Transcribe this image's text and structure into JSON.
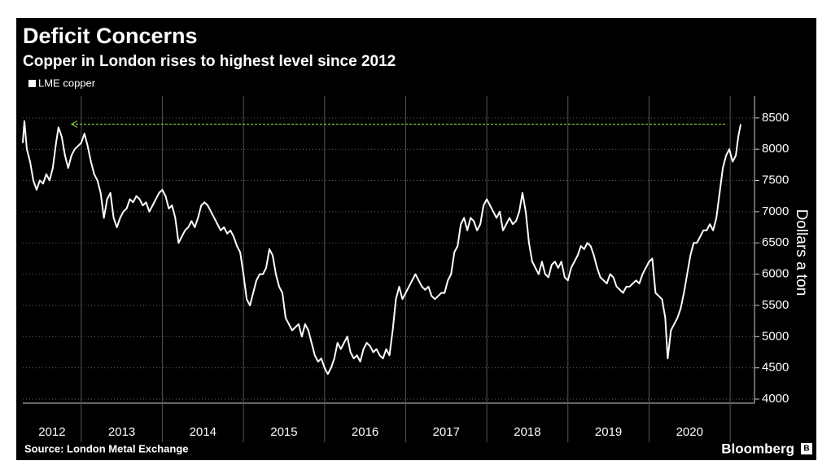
{
  "chart_data": {
    "type": "line",
    "title": "Deficit Concerns",
    "subtitle": "Copper in London rises to highest level since 2012",
    "y_label": "Dollars a ton",
    "source": "Source: London Metal Exchange",
    "brand": "Bloomberg",
    "xlim": [
      2012.28,
      2021.3
    ],
    "xticks": [
      2012,
      2013,
      2014,
      2015,
      2016,
      2017,
      2018,
      2019,
      2020
    ],
    "ylim": [
      3935,
      8850
    ],
    "yticks": [
      4000,
      4500,
      5000,
      5500,
      6000,
      6500,
      7000,
      7500,
      8000,
      8500
    ],
    "grid": true,
    "reference_line": {
      "value": 8400,
      "color": "#7ac143"
    },
    "x": [
      2012.28,
      2012.3,
      2012.33,
      2012.37,
      2012.41,
      2012.45,
      2012.49,
      2012.53,
      2012.57,
      2012.61,
      2012.65,
      2012.69,
      2012.72,
      2012.76,
      2012.8,
      2012.84,
      2012.88,
      2012.92,
      2012.96,
      2013.0,
      2013.04,
      2013.08,
      2013.12,
      2013.16,
      2013.2,
      2013.24,
      2013.28,
      2013.32,
      2013.36,
      2013.4,
      2013.44,
      2013.48,
      2013.52,
      2013.56,
      2013.6,
      2013.64,
      2013.68,
      2013.72,
      2013.76,
      2013.8,
      2013.84,
      2013.88,
      2013.92,
      2013.96,
      2014.0,
      2014.04,
      2014.08,
      2014.12,
      2014.16,
      2014.2,
      2014.24,
      2014.28,
      2014.32,
      2014.36,
      2014.4,
      2014.44,
      2014.48,
      2014.52,
      2014.56,
      2014.6,
      2014.64,
      2014.68,
      2014.72,
      2014.76,
      2014.8,
      2014.84,
      2014.88,
      2014.92,
      2014.96,
      2015.0,
      2015.04,
      2015.08,
      2015.12,
      2015.16,
      2015.2,
      2015.24,
      2015.28,
      2015.32,
      2015.36,
      2015.4,
      2015.44,
      2015.48,
      2015.52,
      2015.56,
      2015.6,
      2015.64,
      2015.68,
      2015.72,
      2015.76,
      2015.8,
      2015.84,
      2015.88,
      2015.92,
      2015.96,
      2016.0,
      2016.04,
      2016.08,
      2016.12,
      2016.16,
      2016.2,
      2016.24,
      2016.28,
      2016.32,
      2016.36,
      2016.4,
      2016.44,
      2016.48,
      2016.52,
      2016.56,
      2016.6,
      2016.64,
      2016.68,
      2016.72,
      2016.76,
      2016.8,
      2016.84,
      2016.88,
      2016.92,
      2016.96,
      2017.0,
      2017.04,
      2017.08,
      2017.12,
      2017.16,
      2017.2,
      2017.24,
      2017.28,
      2017.32,
      2017.36,
      2017.4,
      2017.44,
      2017.48,
      2017.52,
      2017.56,
      2017.6,
      2017.64,
      2017.68,
      2017.72,
      2017.76,
      2017.8,
      2017.84,
      2017.88,
      2017.92,
      2017.96,
      2018.0,
      2018.04,
      2018.08,
      2018.12,
      2018.16,
      2018.2,
      2018.24,
      2018.28,
      2018.32,
      2018.36,
      2018.4,
      2018.44,
      2018.48,
      2018.52,
      2018.56,
      2018.6,
      2018.64,
      2018.68,
      2018.72,
      2018.76,
      2018.8,
      2018.84,
      2018.88,
      2018.92,
      2018.96,
      2019.0,
      2019.04,
      2019.08,
      2019.12,
      2019.16,
      2019.2,
      2019.24,
      2019.28,
      2019.32,
      2019.36,
      2019.4,
      2019.44,
      2019.48,
      2019.52,
      2019.56,
      2019.6,
      2019.64,
      2019.68,
      2019.72,
      2019.76,
      2019.8,
      2019.84,
      2019.88,
      2019.92,
      2019.96,
      2020.0,
      2020.04,
      2020.08,
      2020.12,
      2020.16,
      2020.2,
      2020.23,
      2020.27,
      2020.31,
      2020.35,
      2020.39,
      2020.43,
      2020.47,
      2020.51,
      2020.55,
      2020.59,
      2020.63,
      2020.67,
      2020.71,
      2020.75,
      2020.79,
      2020.83,
      2020.87,
      2020.91,
      2020.95,
      2020.99,
      2021.03,
      2021.07,
      2021.1,
      2021.13
    ],
    "series": [
      {
        "name": "LME copper",
        "color": "#ffffff",
        "values": [
          8100,
          8450,
          8000,
          7800,
          7500,
          7350,
          7500,
          7450,
          7600,
          7500,
          7700,
          8100,
          8350,
          8200,
          7900,
          7700,
          7900,
          8000,
          8050,
          8100,
          8250,
          8050,
          7800,
          7600,
          7500,
          7300,
          6900,
          7200,
          7300,
          6900,
          6750,
          6900,
          7000,
          7050,
          7200,
          7150,
          7250,
          7200,
          7100,
          7150,
          7000,
          7100,
          7200,
          7300,
          7350,
          7250,
          7050,
          7100,
          6900,
          6500,
          6600,
          6700,
          6750,
          6850,
          6750,
          6900,
          7100,
          7150,
          7100,
          7000,
          6900,
          6800,
          6700,
          6750,
          6650,
          6700,
          6600,
          6450,
          6350,
          6000,
          5600,
          5500,
          5700,
          5900,
          6000,
          6000,
          6100,
          6400,
          6300,
          6000,
          5800,
          5700,
          5300,
          5200,
          5100,
          5150,
          5200,
          5000,
          5200,
          5100,
          4900,
          4700,
          4600,
          4650,
          4500,
          4400,
          4500,
          4650,
          4900,
          4800,
          4900,
          5000,
          4750,
          4650,
          4700,
          4600,
          4800,
          4900,
          4850,
          4750,
          4800,
          4700,
          4650,
          4800,
          4700,
          5100,
          5600,
          5800,
          5600,
          5700,
          5800,
          5900,
          6000,
          5900,
          5800,
          5750,
          5800,
          5650,
          5600,
          5650,
          5700,
          5700,
          5900,
          6000,
          6350,
          6450,
          6800,
          6900,
          6700,
          6900,
          6850,
          6700,
          6800,
          7100,
          7200,
          7100,
          7000,
          6900,
          7000,
          6700,
          6800,
          6900,
          6800,
          6850,
          7000,
          7300,
          7000,
          6500,
          6200,
          6100,
          6000,
          6200,
          6000,
          5950,
          6150,
          6200,
          6100,
          6200,
          5950,
          5900,
          6100,
          6200,
          6300,
          6450,
          6400,
          6500,
          6450,
          6300,
          6100,
          5950,
          5900,
          5850,
          6000,
          5950,
          5800,
          5750,
          5700,
          5800,
          5800,
          5850,
          5900,
          5850,
          6000,
          6100,
          6200,
          6250,
          5700,
          5650,
          5600,
          5300,
          4650,
          5100,
          5200,
          5300,
          5450,
          5700,
          6000,
          6300,
          6500,
          6500,
          6600,
          6700,
          6700,
          6800,
          6700,
          6900,
          7300,
          7700,
          7900,
          8000,
          7800,
          7900,
          8200,
          8400
        ]
      }
    ]
  }
}
